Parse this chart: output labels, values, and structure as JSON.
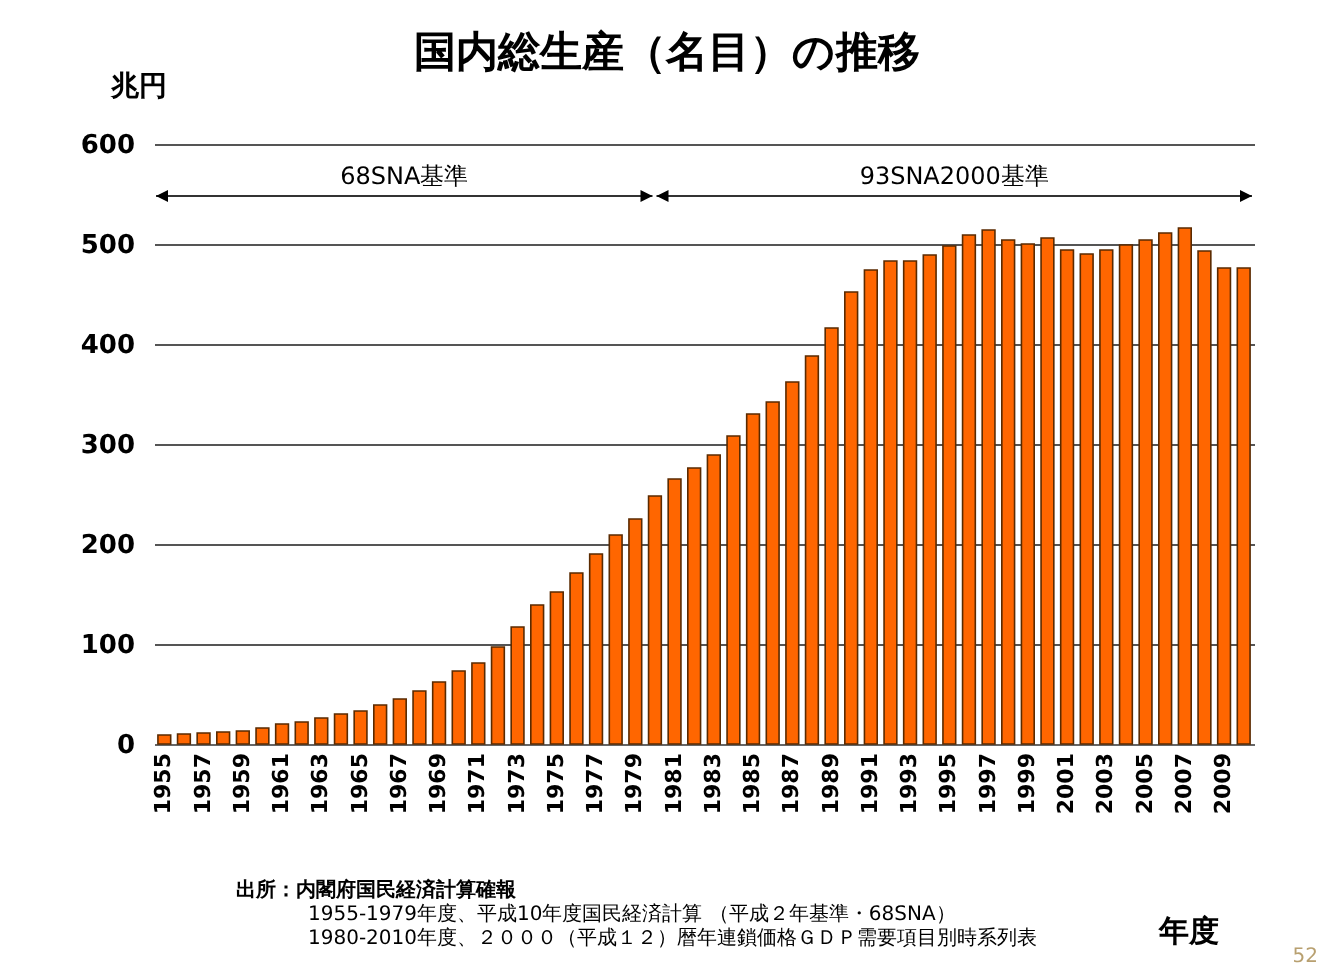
{
  "chart_data": {
    "type": "bar",
    "title": "国内総生産（名目）の推移",
    "ylabel": "兆円",
    "xlabel": "年度",
    "categories": [
      "1955",
      null,
      "1957",
      null,
      "1959",
      null,
      "1961",
      null,
      "1963",
      null,
      "1965",
      null,
      "1967",
      null,
      "1969",
      null,
      "1971",
      null,
      "1973",
      null,
      "1975",
      null,
      "1977",
      null,
      "1979",
      null,
      "1981",
      null,
      "1983",
      null,
      "1985",
      null,
      "1987",
      null,
      "1989",
      null,
      "1991",
      null,
      "1993",
      null,
      "1995",
      null,
      "1997",
      null,
      "1999",
      null,
      "2001",
      null,
      "2003",
      null,
      "2005",
      null,
      "2007",
      null,
      "2009",
      null
    ],
    "values": [
      9,
      10,
      11,
      12,
      13,
      16,
      20,
      22,
      26,
      30,
      33,
      39,
      45,
      53,
      62,
      73,
      81,
      97,
      117,
      139,
      152,
      171,
      190,
      209,
      225,
      248,
      265,
      276,
      289,
      308,
      330,
      342,
      362,
      388,
      416,
      452,
      474,
      483,
      483,
      489,
      498,
      509,
      514,
      504,
      500,
      506,
      494,
      490,
      494,
      499,
      504,
      511,
      516,
      493,
      476,
      476
    ],
    "color": "#ff6600",
    "ylim": [
      0,
      600
    ],
    "yticks": [
      0,
      100,
      200,
      300,
      400,
      500,
      600
    ],
    "grid": "y",
    "annotations": [
      "68SNA基準",
      "93SNA2000基準",
      "出所：内閣府国民経済計算確報",
      "1955-1979年度、平成10年度国民経済計算 （平成２年基準・68SNA）",
      "1980-2010年度、２０００（平成１２）暦年連鎖価格ＧＤＰ需要項目別時系列表",
      "52"
    ]
  }
}
